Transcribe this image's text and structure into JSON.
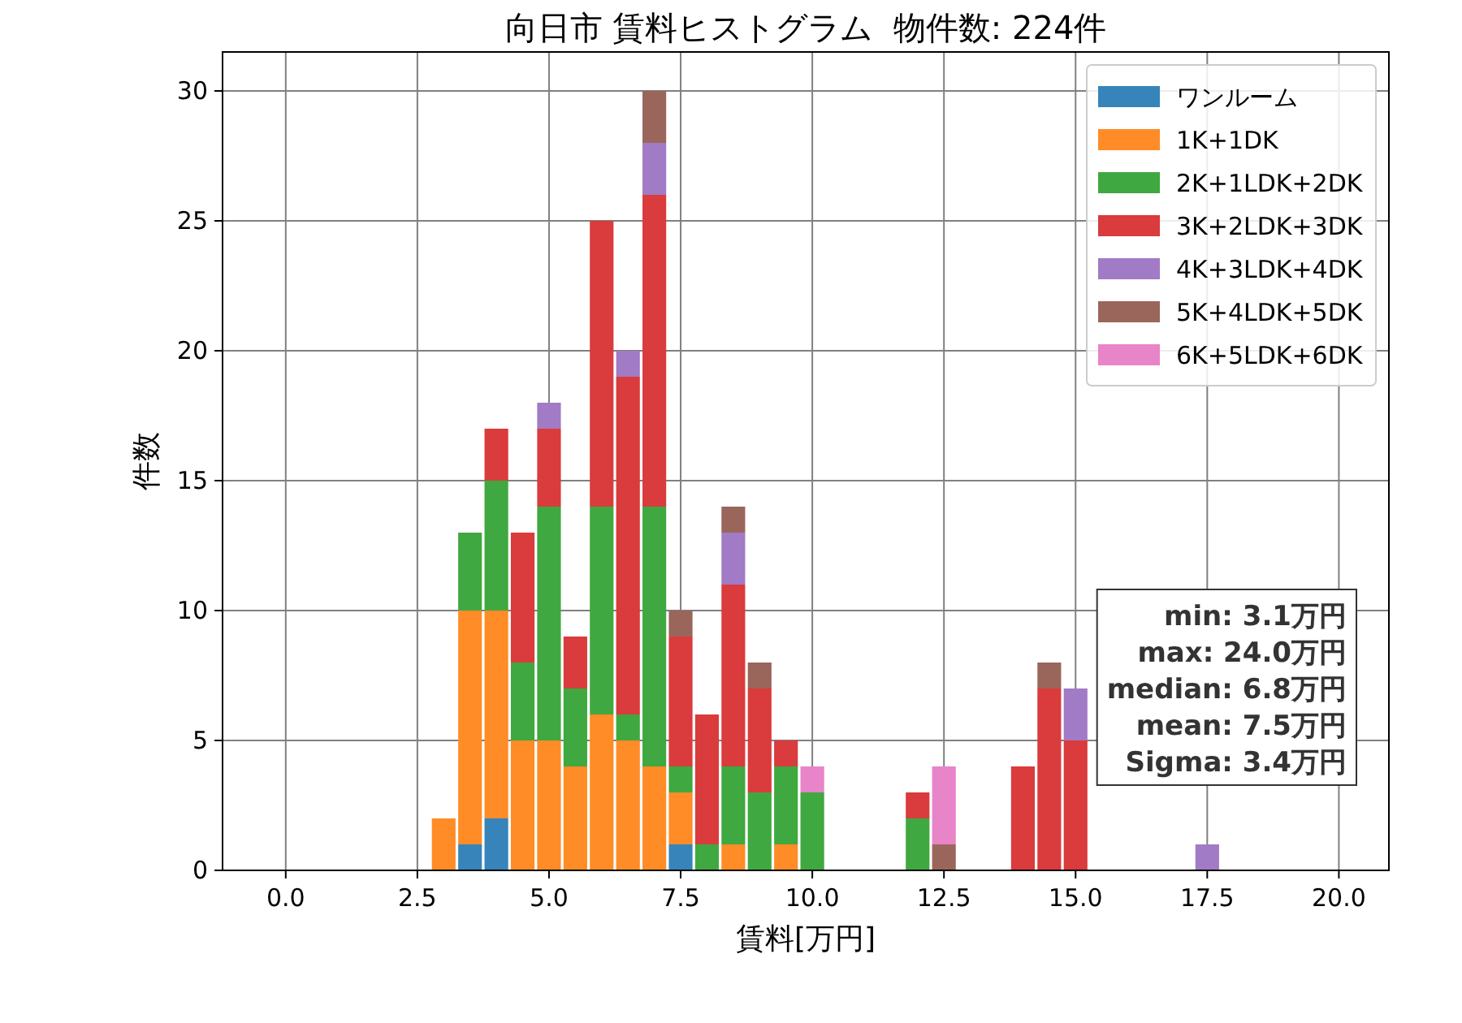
{
  "chart_data": {
    "type": "bar",
    "title": "向日市 賃料ヒストグラム  物件数: 224件",
    "xlabel": "賃料[万円]",
    "ylabel": "件数",
    "x": [
      3,
      3.5,
      4,
      4.5,
      5,
      5.5,
      6,
      6.5,
      7,
      7.5,
      8,
      8.5,
      9,
      9.5,
      10,
      10.5,
      11,
      11.5,
      12,
      12.5,
      13,
      13.5,
      14,
      14.5,
      15,
      15.5,
      16,
      16.5,
      17,
      17.5
    ],
    "stacked": true,
    "series": [
      {
        "name": "ワンルーム",
        "color": "#3784bb",
        "values": [
          0,
          1,
          2,
          0,
          0,
          0,
          0,
          0,
          0,
          1,
          0,
          0,
          0,
          0,
          0,
          0,
          0,
          0,
          0,
          0,
          0,
          0,
          0,
          0,
          0,
          0,
          0,
          0,
          0,
          0
        ]
      },
      {
        "name": "1K+1DK",
        "color": "#ff8c26",
        "values": [
          2,
          9,
          8,
          5,
          5,
          4,
          6,
          5,
          4,
          2,
          0,
          1,
          0,
          1,
          0,
          0,
          0,
          0,
          0,
          0,
          0,
          0,
          0,
          0,
          0,
          0,
          0,
          0,
          0,
          0
        ]
      },
      {
        "name": "2K+1LDK+2DK",
        "color": "#40a840",
        "values": [
          0,
          3,
          5,
          3,
          9,
          3,
          8,
          1,
          10,
          1,
          1,
          3,
          3,
          3,
          3,
          0,
          0,
          0,
          2,
          0,
          0,
          0,
          0,
          0,
          0,
          0,
          0,
          0,
          0,
          0
        ]
      },
      {
        "name": "3K+2LDK+3DK",
        "color": "#da3b3c",
        "values": [
          0,
          0,
          2,
          5,
          3,
          2,
          11,
          13,
          12,
          5,
          5,
          7,
          4,
          1,
          0,
          0,
          0,
          0,
          1,
          0,
          0,
          0,
          4,
          7,
          5,
          0,
          0,
          0,
          0,
          0
        ]
      },
      {
        "name": "4K+3LDK+4DK",
        "color": "#a17bc5",
        "values": [
          0,
          0,
          0,
          0,
          1,
          0,
          0,
          1,
          2,
          0,
          0,
          2,
          0,
          0,
          0,
          0,
          0,
          0,
          0,
          0,
          0,
          0,
          0,
          0,
          2,
          0,
          0,
          0,
          0,
          1
        ]
      },
      {
        "name": "5K+4LDK+5DK",
        "color": "#9a665c",
        "values": [
          0,
          0,
          0,
          0,
          0,
          0,
          0,
          0,
          2,
          1,
          0,
          1,
          1,
          0,
          0,
          0,
          0,
          0,
          0,
          1,
          0,
          0,
          0,
          1,
          0,
          0,
          0,
          0,
          0,
          0
        ]
      },
      {
        "name": "6K+5LDK+6DK",
        "color": "#e884c8",
        "values": [
          0,
          0,
          0,
          0,
          0,
          0,
          0,
          0,
          0,
          0,
          0,
          0,
          0,
          0,
          1,
          0,
          0,
          0,
          0,
          3,
          0,
          0,
          0,
          0,
          0,
          0,
          0,
          0,
          0,
          0
        ]
      }
    ],
    "xlim": [
      -1.2,
      20.95
    ],
    "ylim": [
      0,
      31.5
    ],
    "xticks": [
      {
        "value": 0,
        "label": "0.0"
      },
      {
        "value": 2.5,
        "label": "2.5"
      },
      {
        "value": 5,
        "label": "5.0"
      },
      {
        "value": 7.5,
        "label": "7.5"
      },
      {
        "value": 10,
        "label": "10.0"
      },
      {
        "value": 12.5,
        "label": "12.5"
      },
      {
        "value": 15,
        "label": "15.0"
      },
      {
        "value": 17.5,
        "label": "17.5"
      },
      {
        "value": 20,
        "label": "20.0"
      }
    ],
    "yticks": [
      0,
      5,
      10,
      15,
      20,
      25,
      30
    ],
    "grid": true,
    "legend": "top right",
    "annotations": [
      "min: 3.1万円",
      "max: 24.0万円",
      "median: 6.8万円",
      "mean: 7.5万円",
      "Sigma: 3.4万円"
    ]
  }
}
